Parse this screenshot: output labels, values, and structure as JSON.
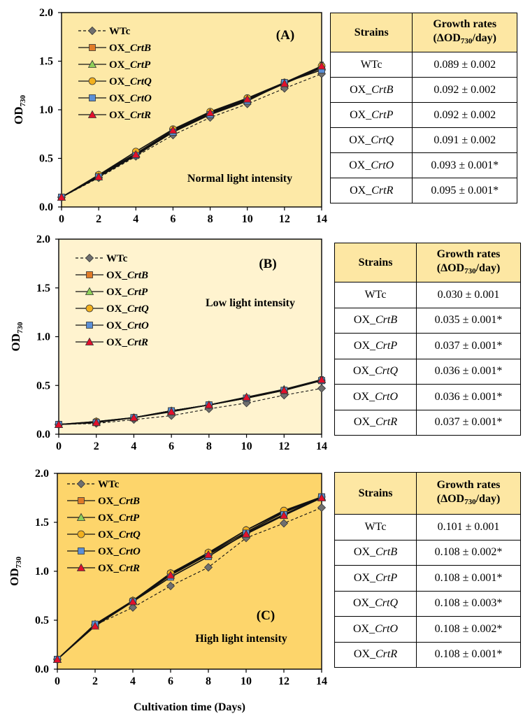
{
  "colors": {
    "panel_normal_bg": "#fde9a7",
    "panel_low_bg": "#fff3cf",
    "panel_high_bg": "#fdd56b",
    "table_header_bg": "#fde7a3",
    "WTc": "#6f6f6f",
    "OX_CrtB": "#e07b27",
    "OX_CrtP": "#8fd05a",
    "OX_CrtQ": "#f2b01e",
    "OX_CrtO": "#5b8fd6",
    "OX_CrtR": "#e3102c"
  },
  "y_axis_label": "OD",
  "y_axis_label_sub": "730",
  "x_axis_label": "Cultivation time (Days)",
  "legend": [
    {
      "prefix": "WTc",
      "gene": "",
      "marker": "diamond",
      "dashed": true
    },
    {
      "prefix": "OX_",
      "gene": "CrtB",
      "marker": "square",
      "dashed": false
    },
    {
      "prefix": "OX_",
      "gene": "CrtP",
      "marker": "triangle",
      "dashed": false
    },
    {
      "prefix": "OX_",
      "gene": "CrtQ",
      "marker": "circle",
      "dashed": false
    },
    {
      "prefix": "OX_",
      "gene": "CrtO",
      "marker": "square",
      "dashed": false
    },
    {
      "prefix": "OX_",
      "gene": "CrtR",
      "marker": "triangle",
      "dashed": false
    }
  ],
  "chart_data": [
    {
      "type": "line",
      "panel": "(A)",
      "condition": "Normal light intensity",
      "x": [
        0,
        2,
        4,
        6,
        8,
        10,
        12,
        14
      ],
      "xlim": [
        0,
        14
      ],
      "ylim": [
        0.0,
        2.0
      ],
      "yticks": [
        "0.0",
        "0.5",
        "1.0",
        "1.5",
        "2.0"
      ],
      "xticks": [
        "0",
        "2",
        "4",
        "6",
        "8",
        "10",
        "12",
        "14"
      ],
      "series": [
        {
          "name": "WTc",
          "values": [
            0.1,
            0.3,
            0.52,
            0.74,
            0.92,
            1.06,
            1.22,
            1.37
          ]
        },
        {
          "name": "OX_CrtB",
          "values": [
            0.1,
            0.32,
            0.54,
            0.78,
            0.96,
            1.1,
            1.27,
            1.43
          ]
        },
        {
          "name": "OX_CrtP",
          "values": [
            0.1,
            0.33,
            0.55,
            0.79,
            0.97,
            1.11,
            1.28,
            1.44
          ]
        },
        {
          "name": "OX_CrtQ",
          "values": [
            0.1,
            0.33,
            0.57,
            0.8,
            0.98,
            1.12,
            1.28,
            1.45
          ]
        },
        {
          "name": "OX_CrtO",
          "values": [
            0.1,
            0.31,
            0.53,
            0.77,
            0.95,
            1.09,
            1.28,
            1.41
          ]
        },
        {
          "name": "OX_CrtR",
          "values": [
            0.1,
            0.31,
            0.54,
            0.79,
            0.97,
            1.11,
            1.27,
            1.45
          ]
        }
      ]
    },
    {
      "type": "line",
      "panel": "(B)",
      "condition": "Low light intensity",
      "x": [
        0,
        2,
        4,
        6,
        8,
        10,
        12,
        14
      ],
      "xlim": [
        0,
        14
      ],
      "ylim": [
        0.0,
        2.0
      ],
      "yticks": [
        "0.0",
        "0.5",
        "1.0",
        "1.5",
        "2.0"
      ],
      "xticks": [
        "0",
        "2",
        "4",
        "6",
        "8",
        "10",
        "12",
        "14"
      ],
      "series": [
        {
          "name": "WTc",
          "values": [
            0.1,
            0.11,
            0.15,
            0.19,
            0.26,
            0.32,
            0.4,
            0.47
          ]
        },
        {
          "name": "OX_CrtB",
          "values": [
            0.1,
            0.12,
            0.17,
            0.24,
            0.3,
            0.37,
            0.45,
            0.55
          ]
        },
        {
          "name": "OX_CrtP",
          "values": [
            0.1,
            0.13,
            0.17,
            0.24,
            0.3,
            0.38,
            0.46,
            0.56
          ]
        },
        {
          "name": "OX_CrtQ",
          "values": [
            0.1,
            0.13,
            0.17,
            0.24,
            0.3,
            0.37,
            0.45,
            0.55
          ]
        },
        {
          "name": "OX_CrtO",
          "values": [
            0.1,
            0.12,
            0.17,
            0.24,
            0.3,
            0.37,
            0.45,
            0.55
          ]
        },
        {
          "name": "OX_CrtR",
          "values": [
            0.1,
            0.12,
            0.17,
            0.23,
            0.3,
            0.38,
            0.45,
            0.56
          ]
        }
      ]
    },
    {
      "type": "line",
      "panel": "(C)",
      "condition": "High light intensity",
      "x": [
        0,
        2,
        4,
        6,
        8,
        10,
        12,
        14
      ],
      "xlim": [
        0,
        14
      ],
      "ylim": [
        0.0,
        2.0
      ],
      "yticks": [
        "0.0",
        "0.5",
        "1.0",
        "1.5",
        "2.0"
      ],
      "xticks": [
        "0",
        "2",
        "4",
        "6",
        "8",
        "10",
        "12",
        "14"
      ],
      "series": [
        {
          "name": "WTc",
          "values": [
            0.1,
            0.45,
            0.63,
            0.85,
            1.04,
            1.34,
            1.49,
            1.65
          ]
        },
        {
          "name": "OX_CrtB",
          "values": [
            0.1,
            0.45,
            0.69,
            0.97,
            1.18,
            1.4,
            1.6,
            1.76
          ]
        },
        {
          "name": "OX_CrtP",
          "values": [
            0.1,
            0.46,
            0.7,
            0.98,
            1.19,
            1.42,
            1.61,
            1.76
          ]
        },
        {
          "name": "OX_CrtQ",
          "values": [
            0.1,
            0.45,
            0.7,
            0.98,
            1.19,
            1.42,
            1.62,
            1.76
          ]
        },
        {
          "name": "OX_CrtO",
          "values": [
            0.1,
            0.46,
            0.69,
            0.94,
            1.15,
            1.39,
            1.58,
            1.76
          ]
        },
        {
          "name": "OX_CrtR",
          "values": [
            0.1,
            0.44,
            0.69,
            0.96,
            1.17,
            1.38,
            1.57,
            1.75
          ]
        }
      ]
    }
  ],
  "tables": [
    {
      "header": {
        "strains": "Strains",
        "growth_title": "Growth rates",
        "unit_open": "(ΔOD",
        "unit_sub": "730",
        "unit_close": "/day)"
      },
      "rows": [
        {
          "prefix": "WTc",
          "gene": "",
          "rate": "0.089 ± 0.002"
        },
        {
          "prefix": "OX_",
          "gene": "CrtB",
          "rate": "0.092 ± 0.002"
        },
        {
          "prefix": "OX_",
          "gene": "CrtP",
          "rate": "0.092 ± 0.002"
        },
        {
          "prefix": "OX_",
          "gene": "CrtQ",
          "rate": "0.091 ± 0.002"
        },
        {
          "prefix": "OX_",
          "gene": "CrtO",
          "rate": "0.093 ± 0.001*"
        },
        {
          "prefix": "OX_",
          "gene": "CrtR",
          "rate": "0.095 ± 0.001*"
        }
      ]
    },
    {
      "header": {
        "strains": "Strains",
        "growth_title": "Growth rates",
        "unit_open": "(ΔOD",
        "unit_sub": "730",
        "unit_close": "/day)"
      },
      "rows": [
        {
          "prefix": "WTc",
          "gene": "",
          "rate": "0.030 ± 0.001"
        },
        {
          "prefix": "OX_",
          "gene": "CrtB",
          "rate": "0.035 ± 0.001*"
        },
        {
          "prefix": "OX_",
          "gene": "CrtP",
          "rate": "0.037 ± 0.001*"
        },
        {
          "prefix": "OX_",
          "gene": "CrtQ",
          "rate": "0.036 ± 0.001*"
        },
        {
          "prefix": "OX_",
          "gene": "CrtO",
          "rate": "0.036 ± 0.001*"
        },
        {
          "prefix": "OX_",
          "gene": "CrtR",
          "rate": "0.037 ± 0.001*"
        }
      ]
    },
    {
      "header": {
        "strains": "Strains",
        "growth_title": "Growth rates",
        "unit_open": "(ΔOD",
        "unit_sub": "730",
        "unit_close": "/day)"
      },
      "rows": [
        {
          "prefix": "WTc",
          "gene": "",
          "rate": "0.101 ± 0.001"
        },
        {
          "prefix": "OX_",
          "gene": "CrtB",
          "rate": "0.108 ± 0.002*"
        },
        {
          "prefix": "OX_",
          "gene": "CrtP",
          "rate": "0.108 ± 0.001*"
        },
        {
          "prefix": "OX_",
          "gene": "CrtQ",
          "rate": "0.108 ± 0.003*"
        },
        {
          "prefix": "OX_",
          "gene": "CrtO",
          "rate": "0.108 ± 0.002*"
        },
        {
          "prefix": "OX_",
          "gene": "CrtR",
          "rate": "0.108 ± 0.001*"
        }
      ]
    }
  ]
}
